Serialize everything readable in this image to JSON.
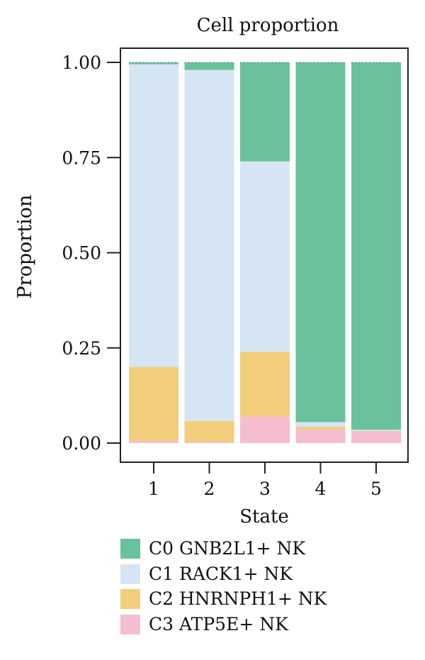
{
  "chart_data": {
    "type": "bar",
    "stacked": true,
    "title": "Cell proportion",
    "xlabel": "State",
    "ylabel": "Proportion",
    "ylim": [
      0,
      1
    ],
    "yticks": [
      "0.00",
      "0.25",
      "0.50",
      "0.75",
      "1.00"
    ],
    "ytick_values": [
      0,
      0.25,
      0.5,
      0.75,
      1
    ],
    "categories": [
      "1",
      "2",
      "3",
      "4",
      "5"
    ],
    "legend_position": "bottom",
    "series": [
      {
        "name": "C3 ATP5E+ NK",
        "color": "#F6BCD0",
        "values": [
          0.005,
          0.003,
          0.07,
          0.035,
          0.03
        ]
      },
      {
        "name": "C2 HNRNPH1+ NK",
        "color": "#F2CD7C",
        "values": [
          0.195,
          0.055,
          0.17,
          0.008,
          0.002
        ]
      },
      {
        "name": "C1 RACK1+ NK",
        "color": "#D6E5F4",
        "values": [
          0.795,
          0.922,
          0.5,
          0.012,
          0.003
        ]
      },
      {
        "name": "C0 GNB2L1+ NK",
        "color": "#6AC19B",
        "values": [
          0.005,
          0.02,
          0.26,
          0.945,
          0.965
        ]
      }
    ],
    "legend_order": [
      3,
      2,
      1,
      0
    ]
  }
}
